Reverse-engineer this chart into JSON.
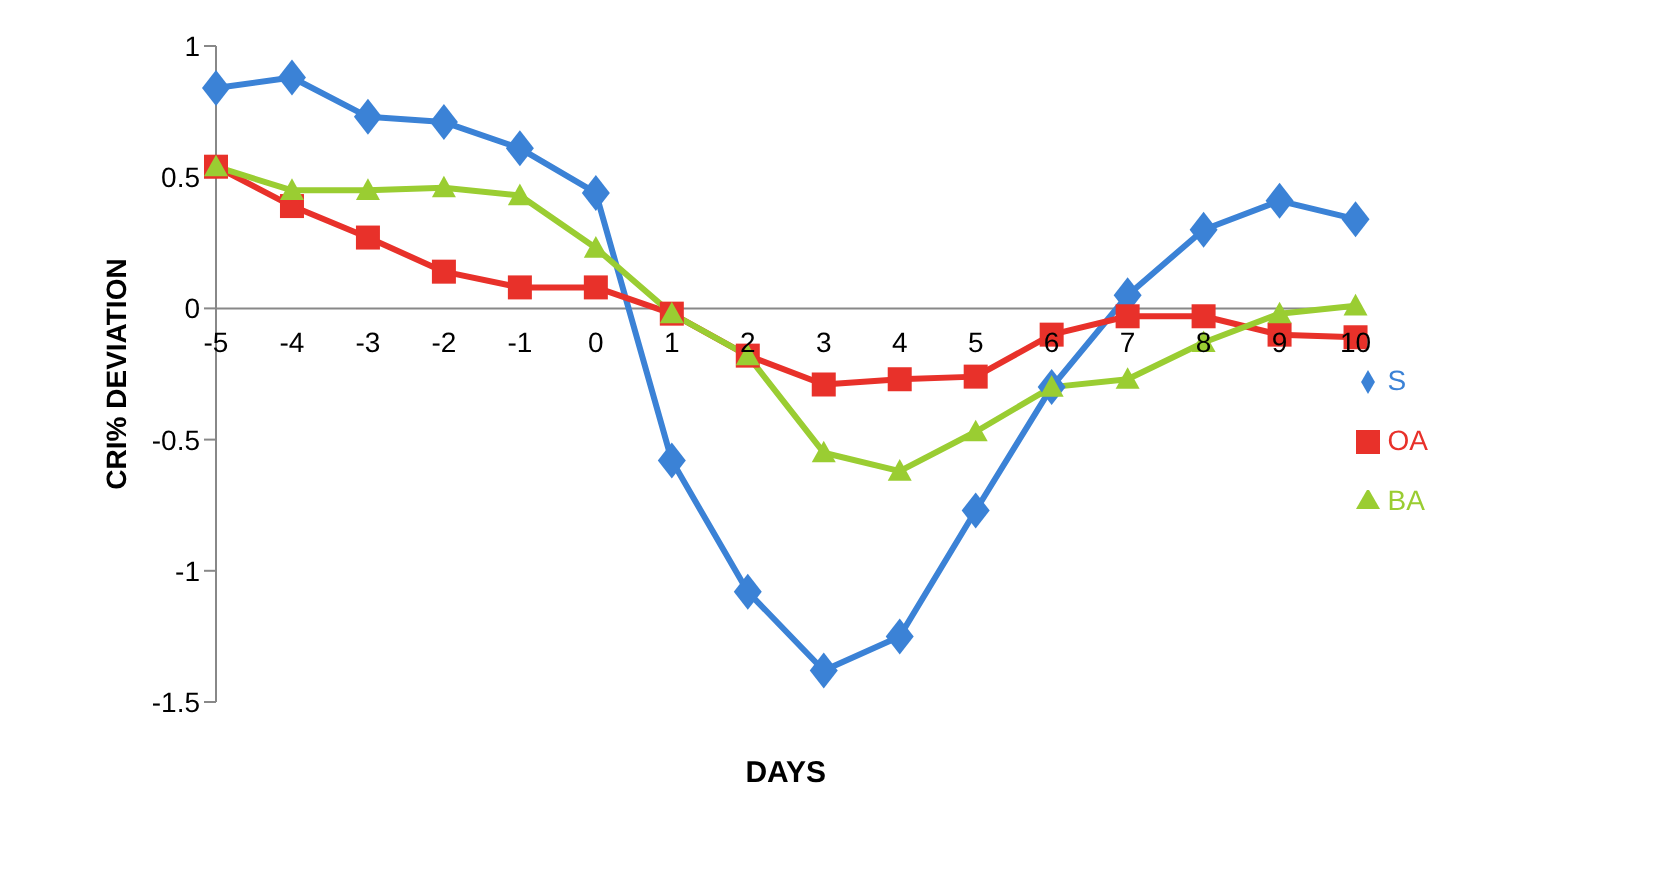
{
  "chart_data": {
    "type": "line",
    "xlabel": "DAYS",
    "ylabel": "CRI% DEVIATION",
    "categories": [
      "-5",
      "-4",
      "-3",
      "-2",
      "-1",
      "0",
      "1",
      "2",
      "3",
      "4",
      "5",
      "6",
      "7",
      "8",
      "9",
      "10"
    ],
    "series": [
      {
        "name": "S",
        "color": "#3b82d6",
        "marker": "diamond",
        "values": [
          0.84,
          0.88,
          0.73,
          0.71,
          0.61,
          0.44,
          -0.58,
          -1.08,
          -1.38,
          -1.25,
          -0.77,
          -0.3,
          0.05,
          0.3,
          0.41,
          0.34
        ]
      },
      {
        "name": "OA",
        "color": "#e8312a",
        "marker": "square",
        "values": [
          0.54,
          0.39,
          0.27,
          0.14,
          0.08,
          0.08,
          -0.02,
          -0.18,
          -0.29,
          -0.27,
          -0.26,
          -0.1,
          -0.03,
          -0.03,
          -0.1,
          -0.11
        ]
      },
      {
        "name": "BA",
        "color": "#9acd32",
        "marker": "triangle",
        "values": [
          0.54,
          0.45,
          0.45,
          0.46,
          0.43,
          0.23,
          -0.02,
          -0.18,
          -0.55,
          -0.62,
          -0.47,
          -0.3,
          -0.27,
          -0.13,
          -0.02,
          0.01
        ]
      }
    ],
    "ylim": [
      -1.5,
      1
    ],
    "yticks": [
      -1.5,
      -1,
      -0.5,
      0,
      0.5,
      1
    ],
    "grid": false,
    "legend": "right",
    "line_style": "solid"
  }
}
